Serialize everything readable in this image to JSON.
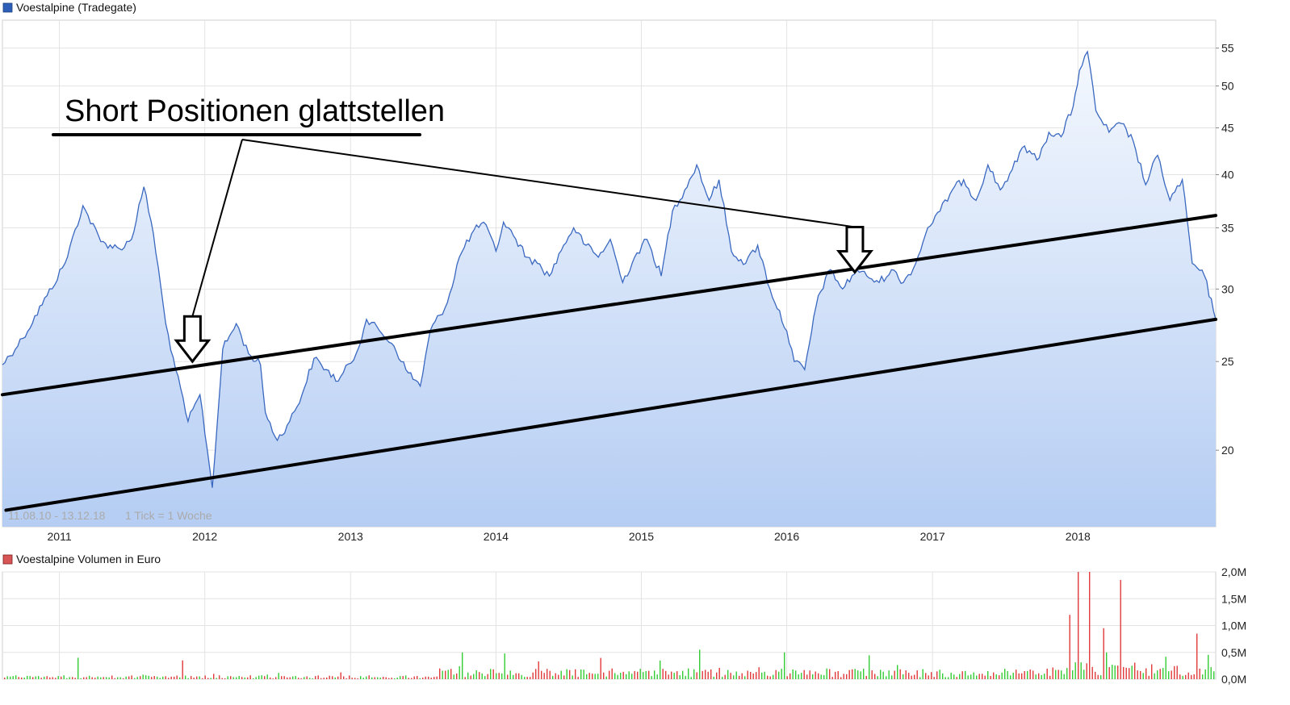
{
  "chart_data": [
    {
      "type": "area",
      "legend": {
        "label": "Voestalpine (Tradegate)",
        "color": "#2e5fb8",
        "placement": "top-left"
      },
      "date_range": "11.08.10 - 13.12.18",
      "tick_note": "1 Tick = 1 Woche",
      "y_scale": "log",
      "ylim": [
        16.5,
        59
      ],
      "y_ticks": [
        20,
        25,
        30,
        35,
        40,
        45,
        50,
        55
      ],
      "x_ticks": [
        "2011",
        "2012",
        "2013",
        "2014",
        "2015",
        "2016",
        "2017",
        "2018"
      ],
      "xlim": [
        "2010-08-11",
        "2018-12-13"
      ],
      "grid": true,
      "line_color": "#3a68c0",
      "series": [
        {
          "x": [
            "2010-08-11",
            "2010-10-01",
            "2010-12-01",
            "2011-01-15",
            "2011-03-01",
            "2011-04-15",
            "2011-06-01",
            "2011-07-01",
            "2011-08-01",
            "2011-08-25",
            "2011-09-25",
            "2011-10-20",
            "2011-11-20",
            "2011-12-20",
            "2012-01-20",
            "2012-02-15",
            "2012-03-20",
            "2012-04-20",
            "2012-05-20",
            "2012-06-01",
            "2012-07-01",
            "2012-08-01",
            "2012-09-01",
            "2012-10-01",
            "2012-11-01",
            "2012-12-01",
            "2013-01-15",
            "2013-02-10",
            "2013-03-15",
            "2013-04-20",
            "2013-05-20",
            "2013-06-25",
            "2013-07-20",
            "2013-09-01",
            "2013-10-01",
            "2013-11-01",
            "2013-12-01",
            "2014-01-01",
            "2014-01-20",
            "2014-02-20",
            "2014-03-20",
            "2014-04-15",
            "2014-05-15",
            "2014-06-20",
            "2014-07-15",
            "2014-08-15",
            "2014-09-15",
            "2014-10-15",
            "2014-11-15",
            "2014-12-15",
            "2015-01-15",
            "2015-02-20",
            "2015-03-20",
            "2015-04-20",
            "2015-05-20",
            "2015-06-20",
            "2015-07-15",
            "2015-08-15",
            "2015-09-20",
            "2015-10-20",
            "2015-11-20",
            "2016-01-01",
            "2016-01-20",
            "2016-02-15",
            "2016-03-20",
            "2016-04-20",
            "2016-05-20",
            "2016-06-25",
            "2016-07-20",
            "2016-08-20",
            "2016-09-20",
            "2016-10-20",
            "2016-11-20",
            "2016-12-20",
            "2017-01-20",
            "2017-02-20",
            "2017-03-20",
            "2017-04-20",
            "2017-05-20",
            "2017-06-20",
            "2017-07-20",
            "2017-08-20",
            "2017-09-20",
            "2017-10-20",
            "2017-11-20",
            "2017-12-20",
            "2018-01-05",
            "2018-01-25",
            "2018-02-15",
            "2018-03-20",
            "2018-04-20",
            "2018-05-20",
            "2018-06-20",
            "2018-07-20",
            "2018-08-20",
            "2018-09-20",
            "2018-10-15",
            "2018-11-15",
            "2018-12-13"
          ],
          "values": [
            24.8,
            26.5,
            29.5,
            32.0,
            37.0,
            33.8,
            33.2,
            34.0,
            38.8,
            34.5,
            27.5,
            24.5,
            21.5,
            23.0,
            18.2,
            25.8,
            27.5,
            25.5,
            24.8,
            22.0,
            20.5,
            21.5,
            23.0,
            25.2,
            24.5,
            23.8,
            25.5,
            27.8,
            27.0,
            26.0,
            24.5,
            23.5,
            27.0,
            29.0,
            32.5,
            34.5,
            35.5,
            33.0,
            35.5,
            34.0,
            32.5,
            32.0,
            31.0,
            33.5,
            35.0,
            33.5,
            32.5,
            34.0,
            30.5,
            32.5,
            34.0,
            31.0,
            36.5,
            38.5,
            41.0,
            37.5,
            39.5,
            33.0,
            32.0,
            33.5,
            30.0,
            27.0,
            25.0,
            24.5,
            29.5,
            31.5,
            30.0,
            31.5,
            31.0,
            30.5,
            31.5,
            30.5,
            32.0,
            35.0,
            36.5,
            38.5,
            39.5,
            37.5,
            41.0,
            38.5,
            40.5,
            43.0,
            41.5,
            44.5,
            44.0,
            47.5,
            52.0,
            54.5,
            47.0,
            44.5,
            45.5,
            43.5,
            39.0,
            42.0,
            37.5,
            39.5,
            32.0,
            31.0,
            27.8
          ]
        }
      ],
      "trend_lines": [
        {
          "name": "upper-trend",
          "from": [
            "2010-08-11",
            23.0
          ],
          "to": [
            "2018-12-13",
            36.1
          ]
        },
        {
          "name": "lower-trend",
          "from": [
            "2010-08-20",
            17.2
          ],
          "to": [
            "2018-12-13",
            27.8
          ]
        }
      ],
      "annotations": [
        {
          "text": "Short Positionen glattstellen"
        },
        {
          "type": "arrow-down",
          "x": "2011-12-01",
          "y": 25.0
        },
        {
          "type": "arrow-down",
          "x": "2016-06-20",
          "y": 31.3
        }
      ]
    },
    {
      "type": "bar",
      "legend": {
        "label": "Voestalpine Volumen in Euro",
        "color": "#c94b4b",
        "placement": "top-left"
      },
      "ylim": [
        0,
        2000000
      ],
      "y_ticks": [
        "0,0M",
        "0,5M",
        "1,0M",
        "1,5M",
        "2,0M"
      ],
      "up_color": "#33cc33",
      "down_color": "#e03a3a",
      "spikes": [
        {
          "x": "2011-02-10",
          "value": 400000,
          "dir": "up"
        },
        {
          "x": "2011-11-01",
          "value": 350000,
          "dir": "down"
        },
        {
          "x": "2013-10-01",
          "value": 500000,
          "dir": "up"
        },
        {
          "x": "2014-01-20",
          "value": 480000,
          "dir": "up"
        },
        {
          "x": "2015-05-20",
          "value": 550000,
          "dir": "up"
        },
        {
          "x": "2015-12-20",
          "value": 500000,
          "dir": "up"
        },
        {
          "x": "2017-12-05",
          "value": 1200000,
          "dir": "down"
        },
        {
          "x": "2017-12-25",
          "value": 2000000,
          "dir": "down"
        },
        {
          "x": "2018-01-25",
          "value": 2000000,
          "dir": "down"
        },
        {
          "x": "2018-02-28",
          "value": 950000,
          "dir": "down"
        },
        {
          "x": "2018-03-10",
          "value": 500000,
          "dir": "up"
        },
        {
          "x": "2018-04-15",
          "value": 1850000,
          "dir": "down"
        },
        {
          "x": "2018-10-25",
          "value": 850000,
          "dir": "down"
        }
      ]
    }
  ]
}
